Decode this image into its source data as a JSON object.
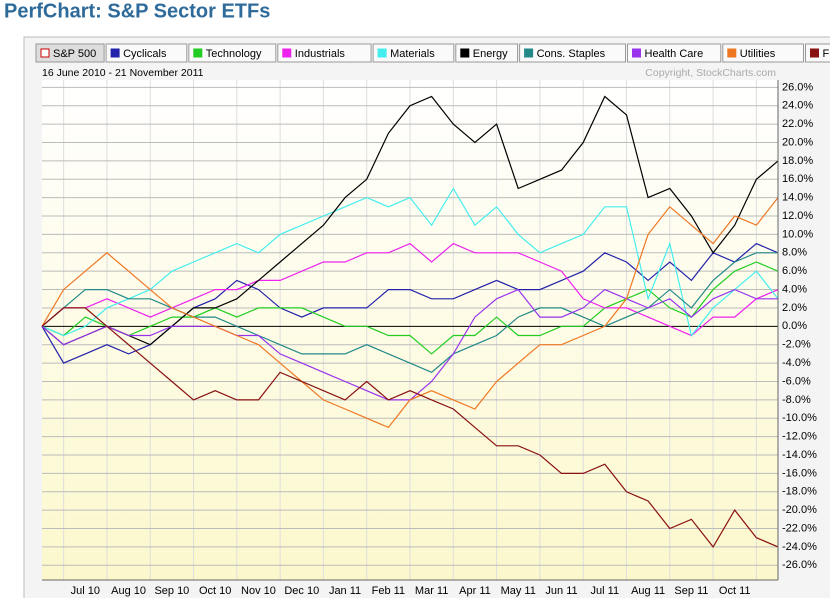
{
  "chart_data": {
    "type": "line",
    "title": "PerfChart: S&P Sector ETFs",
    "subtitle": "16 June 2010 - 21 November 2011",
    "annotation": "Copyright, StockCharts.com",
    "categories": [
      null,
      null,
      "Jul 10",
      null,
      "Aug 10",
      null,
      "Sep 10",
      null,
      "Oct 10",
      null,
      "Nov 10",
      null,
      "Dec 10",
      null,
      "Jan 11",
      null,
      "Feb 11",
      null,
      "Mar 11",
      null,
      "Apr 11",
      null,
      "May 11",
      null,
      "Jun 11",
      null,
      "Jul 11",
      null,
      "Aug 11",
      null,
      "Sep 11",
      null,
      "Oct 11",
      null,
      null
    ],
    "series": [
      {
        "name": "S&P 500",
        "color": "#cc0000",
        "visible": false
      },
      {
        "name": "Cyclicals",
        "color": "#2222aa",
        "values": [
          0,
          -4,
          -3,
          -2,
          -3,
          -2,
          0,
          2,
          3,
          5,
          4,
          2,
          1,
          2,
          2,
          2,
          4,
          4,
          3,
          3,
          4,
          5,
          4,
          4,
          5,
          6,
          8,
          7,
          5,
          7,
          5,
          8,
          7,
          9,
          8
        ]
      },
      {
        "name": "Technology",
        "color": "#22cc22",
        "values": [
          0,
          -1,
          1,
          0,
          -1,
          0,
          1,
          1,
          2,
          1,
          2,
          2,
          2,
          1,
          0,
          0,
          -1,
          -1,
          -3,
          -1,
          -1,
          1,
          -1,
          -1,
          0,
          0,
          2,
          3,
          4,
          2,
          1,
          4,
          6,
          7,
          6
        ]
      },
      {
        "name": "Industrials",
        "color": "#ee22ee",
        "values": [
          0,
          2,
          2,
          3,
          2,
          1,
          2,
          3,
          4,
          4,
          5,
          5,
          6,
          7,
          7,
          8,
          8,
          9,
          7,
          9,
          8,
          8,
          8,
          7,
          6,
          3,
          2,
          2,
          1,
          0,
          -1,
          1,
          1,
          3,
          4
        ]
      },
      {
        "name": "Materials",
        "color": "#44eeee",
        "values": [
          0,
          -1,
          0,
          2,
          3,
          4,
          6,
          7,
          8,
          9,
          8,
          10,
          11,
          12,
          13,
          14,
          13,
          14,
          11,
          15,
          11,
          13,
          10,
          8,
          9,
          10,
          13,
          13,
          3,
          9,
          -1,
          2,
          4,
          6,
          3
        ]
      },
      {
        "name": "Energy",
        "color": "#000000",
        "values": [
          0,
          -2,
          -1,
          0,
          -1,
          -2,
          0,
          2,
          2,
          3,
          5,
          7,
          9,
          11,
          14,
          16,
          21,
          24,
          25,
          22,
          20,
          22,
          15,
          16,
          17,
          20,
          25,
          23,
          14,
          15,
          12,
          8,
          11,
          16,
          18
        ]
      },
      {
        "name": "Cons. Staples",
        "color": "#228888",
        "values": [
          0,
          2,
          4,
          4,
          3,
          3,
          2,
          1,
          1,
          0,
          -1,
          -2,
          -3,
          -3,
          -3,
          -2,
          -3,
          -4,
          -5,
          -3,
          -2,
          -1,
          1,
          2,
          2,
          1,
          0,
          1,
          2,
          4,
          2,
          5,
          7,
          8,
          8
        ]
      },
      {
        "name": "Health Care",
        "color": "#9933ee",
        "values": [
          0,
          -2,
          -1,
          0,
          -1,
          -1,
          0,
          0,
          0,
          -1,
          -1,
          -3,
          -4,
          -5,
          -6,
          -7,
          -8,
          -8,
          -6,
          -3,
          1,
          3,
          4,
          1,
          1,
          2,
          4,
          3,
          2,
          3,
          1,
          3,
          4,
          3,
          3
        ]
      },
      {
        "name": "Utilities",
        "color": "#ee7722",
        "values": [
          0,
          4,
          6,
          8,
          6,
          4,
          2,
          1,
          0,
          -1,
          -2,
          -4,
          -6,
          -8,
          -9,
          -10,
          -11,
          -8,
          -7,
          -8,
          -9,
          -6,
          -4,
          -2,
          -2,
          -1,
          0,
          3,
          10,
          13,
          11,
          9,
          12,
          11,
          14
        ]
      },
      {
        "name": "Financials",
        "color": "#881111",
        "values": [
          0,
          2,
          2,
          0,
          -2,
          -4,
          -6,
          -8,
          -7,
          -8,
          -8,
          -5,
          -6,
          -7,
          -8,
          -6,
          -8,
          -7,
          -8,
          -9,
          -11,
          -13,
          -13,
          -14,
          -16,
          -16,
          -15,
          -18,
          -19,
          -22,
          -21,
          -24,
          -20,
          -23,
          -24
        ]
      }
    ],
    "ylim": [
      -27.6,
      26.8
    ],
    "yticks": [
      {
        "value": 26,
        "label": "26.0%"
      },
      {
        "value": 24,
        "label": "24.0%"
      },
      {
        "value": 22,
        "label": "22.0%"
      },
      {
        "value": 20,
        "label": "20.0%"
      },
      {
        "value": 18,
        "label": "18.0%"
      },
      {
        "value": 16,
        "label": "16.0%"
      },
      {
        "value": 14,
        "label": "14.0%"
      },
      {
        "value": 12,
        "label": "12.0%"
      },
      {
        "value": 10,
        "label": "10.0%"
      },
      {
        "value": 8,
        "label": "8.0%"
      },
      {
        "value": 6,
        "label": "6.0%"
      },
      {
        "value": 4,
        "label": "4.0%"
      },
      {
        "value": 2,
        "label": "2.0%"
      },
      {
        "value": 0,
        "label": "0.0%"
      },
      {
        "value": -2,
        "label": "-2.0%"
      },
      {
        "value": -4,
        "label": "-4.0%"
      },
      {
        "value": -6,
        "label": "-6.0%"
      },
      {
        "value": -8,
        "label": "-8.0%"
      },
      {
        "value": -10,
        "label": "-10.0%"
      },
      {
        "value": -12,
        "label": "-12.0%"
      },
      {
        "value": -14,
        "label": "-14.0%"
      },
      {
        "value": -16,
        "label": "-16.0%"
      },
      {
        "value": -18,
        "label": "-18.0%"
      },
      {
        "value": -20,
        "label": "-20.0%"
      },
      {
        "value": -22,
        "label": "-22.0%"
      },
      {
        "value": -24,
        "label": "-24.0%"
      },
      {
        "value": -26,
        "label": "-26.0%"
      }
    ],
    "grid": true
  }
}
